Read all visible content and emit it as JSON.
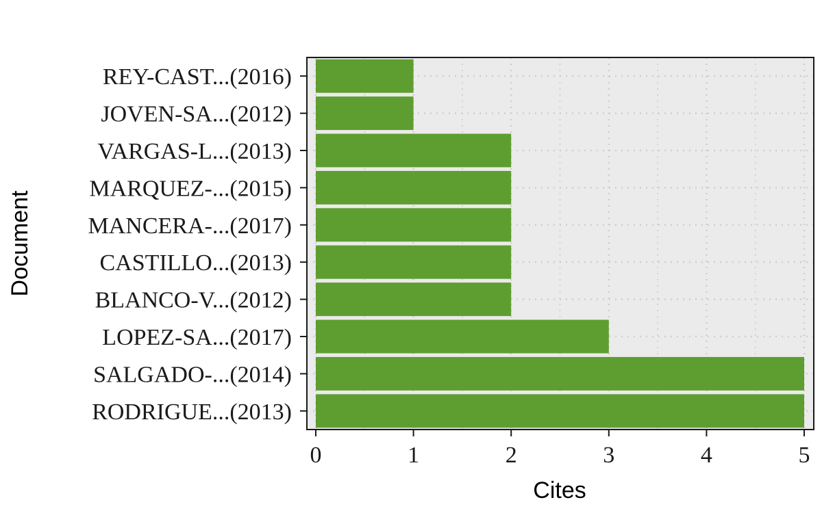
{
  "chart_data": {
    "type": "bar",
    "orientation": "horizontal",
    "title": "",
    "xlabel": "Cites",
    "ylabel": "Document",
    "categories": [
      "REY-CAST...(2016)",
      "JOVEN-SA...(2012)",
      "VARGAS-L...(2013)",
      "MARQUEZ-...(2015)",
      "MANCERA-...(2017)",
      "CASTILLO...(2013)",
      "BLANCO-V...(2012)",
      "LOPEZ-SA...(2017)",
      "SALGADO-...(2014)",
      "RODRIGUE...(2013)"
    ],
    "values": [
      1,
      1,
      2,
      2,
      2,
      2,
      2,
      3,
      5,
      5
    ],
    "xlim": [
      0,
      5
    ],
    "xticks": [
      "0",
      "1",
      "2",
      "3",
      "4",
      "5"
    ],
    "grid": true,
    "colors": {
      "bar": "#5e9e30",
      "panel": "#ebebeb",
      "grid": "#cfcfcf",
      "border": "#1a1a1a"
    }
  }
}
